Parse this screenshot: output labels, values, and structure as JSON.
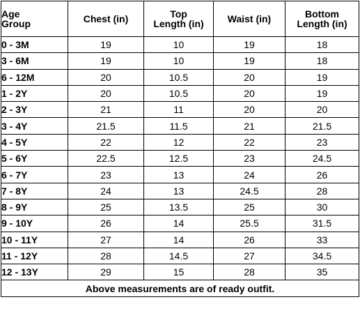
{
  "table": {
    "headers": {
      "age_line1": "Age",
      "age_line2": "Group",
      "chest": "Chest (in)",
      "top_line1": "Top",
      "top_line2": "Length (in)",
      "waist": "Waist (in)",
      "bottom_line1": "Bottom",
      "bottom_line2": "Length (in)"
    },
    "rows": [
      {
        "age": "0 - 3M",
        "chest": "19",
        "top": "10",
        "waist": "19",
        "bottom": "18"
      },
      {
        "age": "3 - 6M",
        "chest": "19",
        "top": "10",
        "waist": "19",
        "bottom": "18"
      },
      {
        "age": "6 - 12M",
        "chest": "20",
        "top": "10.5",
        "waist": "20",
        "bottom": "19"
      },
      {
        "age": "1 - 2Y",
        "chest": "20",
        "top": "10.5",
        "waist": "20",
        "bottom": "19"
      },
      {
        "age": "2 - 3Y",
        "chest": "21",
        "top": "11",
        "waist": "20",
        "bottom": "20"
      },
      {
        "age": "3 - 4Y",
        "chest": "21.5",
        "top": "11.5",
        "waist": "21",
        "bottom": "21.5"
      },
      {
        "age": "4 - 5Y",
        "chest": "22",
        "top": "12",
        "waist": "22",
        "bottom": "23"
      },
      {
        "age": "5 - 6Y",
        "chest": "22.5",
        "top": "12.5",
        "waist": "23",
        "bottom": "24.5"
      },
      {
        "age": "6 - 7Y",
        "chest": "23",
        "top": "13",
        "waist": "24",
        "bottom": "26"
      },
      {
        "age": "7 - 8Y",
        "chest": "24",
        "top": "13",
        "waist": "24.5",
        "bottom": "28"
      },
      {
        "age": "8 - 9Y",
        "chest": "25",
        "top": "13.5",
        "waist": "25",
        "bottom": "30"
      },
      {
        "age": "9 - 10Y",
        "chest": "26",
        "top": "14",
        "waist": "25.5",
        "bottom": "31.5"
      },
      {
        "age": "10 - 11Y",
        "chest": "27",
        "top": "14",
        "waist": "26",
        "bottom": "33"
      },
      {
        "age": "11 - 12Y",
        "chest": "28",
        "top": "14.5",
        "waist": "27",
        "bottom": "34.5"
      },
      {
        "age": "12 - 13Y",
        "chest": "29",
        "top": "15",
        "waist": "28",
        "bottom": "35"
      }
    ],
    "footer_note": "Above measurements are of ready outfit."
  }
}
